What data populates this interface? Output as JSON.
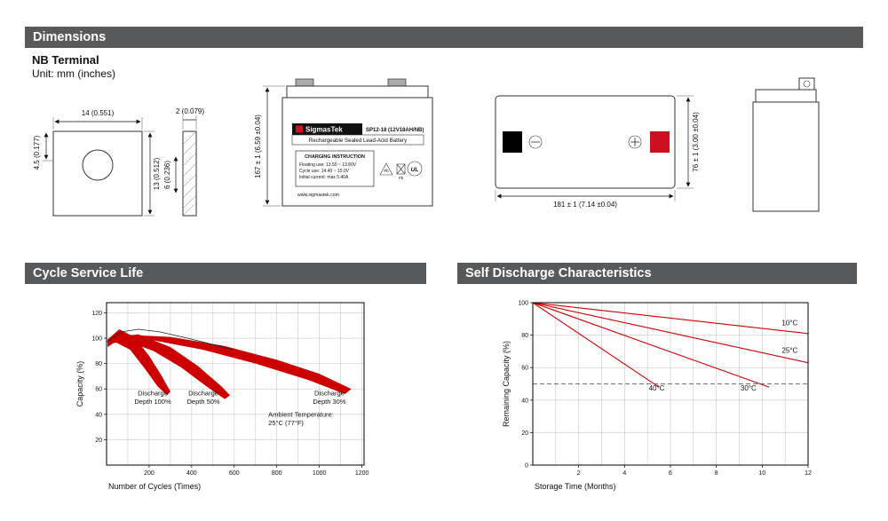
{
  "colors": {
    "header_bar": "#58595b",
    "accent_red": "#cc1122",
    "chart_red": "#cc0000"
  },
  "sections": {
    "dimensions_title": "Dimensions",
    "terminal_heading": "NB Terminal",
    "unit_note": "Unit: mm (inches)"
  },
  "terminal_drawing": {
    "width_dim": "14 (0.551)",
    "hole_offset_dim": "4.5 (0.177)",
    "height_dim": "13 (0.512)",
    "thickness_dim": "2 (0.079)",
    "depth_dim": "6 (0.236)"
  },
  "battery_front": {
    "brand": "SigmasTek",
    "model": "SP12-18 (12V18AH/NB)",
    "subtitle": "Rechargeable Sealed Lead-Acid Battery",
    "charging_title": "CHARGING INSTRUCTION",
    "charging_line_1": "Floating use: 13.50 ~ 13.80V",
    "charging_line_2": "Cycle use: 14.40 ~ 15.0V",
    "charging_line_3": "Initial current: max 5.40A",
    "website": "www.sigmastek.com",
    "pb_label": "Pb",
    "ul_label": "UL",
    "height_dim": "167 ± 1 (6.59 ±0.04)"
  },
  "battery_top": {
    "width_dim": "181 ± 1 (7.14 ±0.04)",
    "depth_dim": "76 ± 1 (3.00 ±0.04)"
  },
  "chart_data": [
    {
      "type": "area",
      "title": "Cycle Service Life",
      "xlabel": "Number of Cycles (Times)",
      "ylabel": "Capacity (%)",
      "xlim": [
        0,
        1210
      ],
      "ylim": [
        0,
        128
      ],
      "xticks": [
        200,
        400,
        600,
        800,
        1000,
        1200
      ],
      "yticks": [
        20,
        40,
        60,
        80,
        100,
        120
      ],
      "grid": {
        "x_step": 100,
        "y_step": 20
      },
      "line_color": "#cc0000",
      "bands": [
        {
          "name": "Discharge Depth 100%",
          "upper": [
            [
              5,
              99
            ],
            [
              60,
              107
            ],
            [
              130,
              101
            ],
            [
              200,
              86
            ],
            [
              260,
              70
            ],
            [
              300,
              58
            ]
          ],
          "lower": [
            [
              285,
              55
            ],
            [
              240,
              62
            ],
            [
              180,
              76
            ],
            [
              110,
              91
            ],
            [
              40,
              97
            ],
            [
              5,
              93
            ]
          ]
        },
        {
          "name": "Discharge Depth 50%",
          "upper": [
            [
              30,
              101
            ],
            [
              150,
              103
            ],
            [
              300,
              93
            ],
            [
              430,
              78
            ],
            [
              540,
              62
            ],
            [
              580,
              55
            ]
          ],
          "lower": [
            [
              555,
              52
            ],
            [
              470,
              62
            ],
            [
              350,
              77
            ],
            [
              220,
              90
            ],
            [
              90,
              98
            ],
            [
              30,
              96
            ]
          ]
        },
        {
          "name": "Discharge Depth 30%",
          "upper": [
            [
              60,
              103
            ],
            [
              300,
              101
            ],
            [
              550,
              94
            ],
            [
              800,
              83
            ],
            [
              1000,
              72
            ],
            [
              1150,
              60
            ]
          ],
          "lower": [
            [
              1120,
              56
            ],
            [
              950,
              67
            ],
            [
              700,
              80
            ],
            [
              450,
              91
            ],
            [
              200,
              99
            ],
            [
              60,
              99
            ]
          ]
        }
      ],
      "envelope": [
        [
          0,
          97
        ],
        [
          70,
          105
        ],
        [
          150,
          107
        ],
        [
          250,
          105
        ],
        [
          380,
          100
        ],
        [
          500,
          95
        ],
        [
          590,
          91
        ]
      ],
      "annotations": [
        {
          "text": "Discharge\nDepth 100%",
          "x": 217,
          "y": 55,
          "anchor": "middle"
        },
        {
          "text": "Discharge\nDepth 50%",
          "x": 455,
          "y": 55,
          "anchor": "middle"
        },
        {
          "text": "Discharge\nDepth 30%",
          "x": 1047,
          "y": 55,
          "anchor": "middle"
        },
        {
          "text": "Ambient Temperature:\n25°C (77°F)",
          "x": 760,
          "y": 38,
          "anchor": "start"
        }
      ]
    },
    {
      "type": "line",
      "title": "Self Discharge Characteristics",
      "xlabel": "Storage Time (Months)",
      "ylabel": "Remaining Capacity (%)",
      "xlim": [
        0,
        12
      ],
      "ylim": [
        0,
        100
      ],
      "xticks": [
        2,
        4,
        6,
        8,
        10,
        12
      ],
      "yticks": [
        0,
        20,
        40,
        60,
        80,
        100
      ],
      "grid": {
        "x_step": 1,
        "y_step": 20
      },
      "line_color": "#cc0000",
      "dashed_y": 50,
      "series": [
        {
          "name": "10°C",
          "points": [
            [
              0,
              100
            ],
            [
              12,
              81
            ]
          ],
          "label_at": [
            11.2,
            86
          ]
        },
        {
          "name": "25°C",
          "points": [
            [
              0,
              100
            ],
            [
              12,
              63
            ]
          ],
          "label_at": [
            11.2,
            69
          ]
        },
        {
          "name": "30°C",
          "points": [
            [
              0,
              100
            ],
            [
              10.3,
              48
            ]
          ],
          "label_at": [
            9.4,
            46
          ]
        },
        {
          "name": "40°C",
          "points": [
            [
              0,
              100
            ],
            [
              5.5,
              48
            ]
          ],
          "label_at": [
            5.4,
            46
          ]
        }
      ]
    }
  ]
}
